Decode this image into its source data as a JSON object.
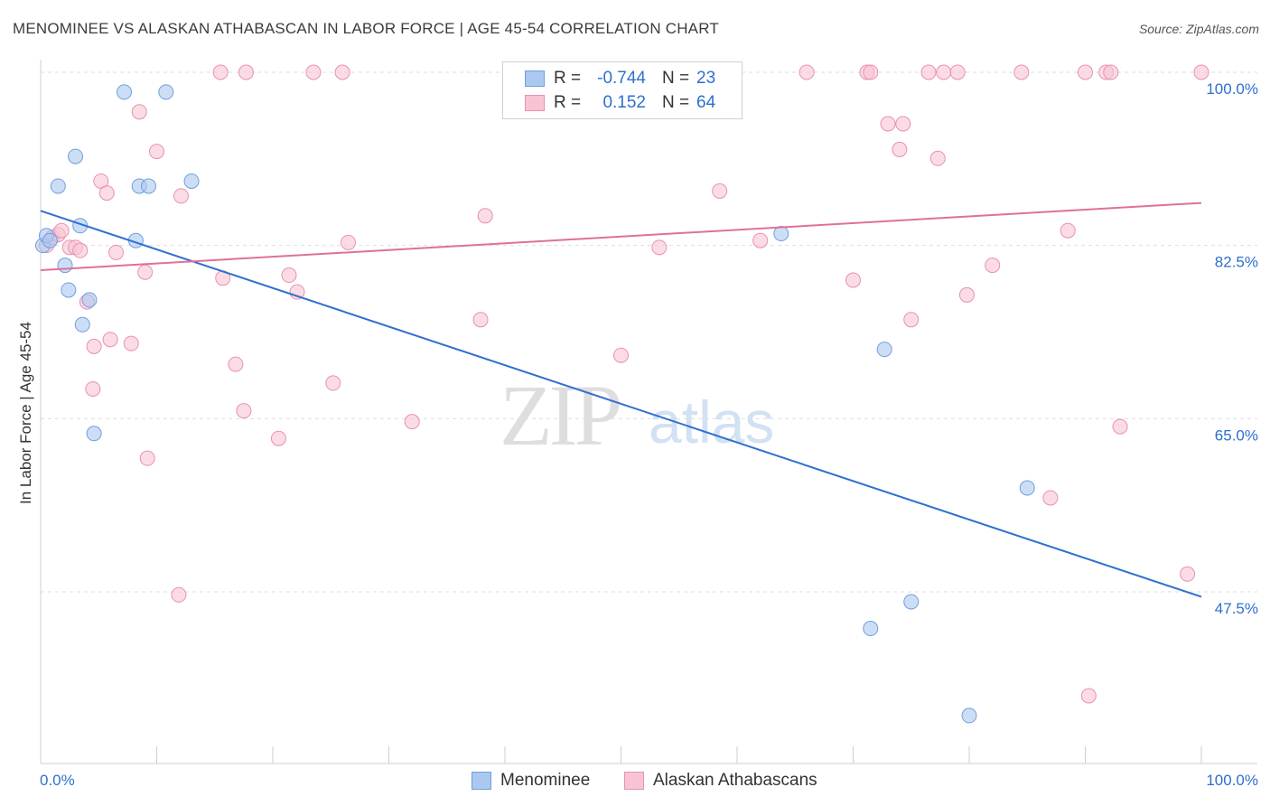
{
  "title": "MENOMINEE VS ALASKAN ATHABASCAN IN LABOR FORCE | AGE 45-54 CORRELATION CHART",
  "source": "Source: ZipAtlas.com",
  "watermark": {
    "zip": "ZIP",
    "atlas": "atlas"
  },
  "legend": {
    "rows": [
      {
        "r_label": "R =",
        "r_value": "-0.744",
        "n_label": "N =",
        "n_value": "23",
        "color": "#aac8f0",
        "border": "#6f9fde"
      },
      {
        "r_label": "R =",
        "r_value": "0.152",
        "n_label": "N =",
        "n_value": "64",
        "color": "#f8c4d4",
        "border": "#e891ae"
      }
    ]
  },
  "bottom_legend": [
    {
      "label": "Menominee",
      "color": "#aac8f0",
      "border": "#6f9fde"
    },
    {
      "label": "Alaskan Athabascans",
      "color": "#f8c4d4",
      "border": "#e891ae"
    }
  ],
  "chart_data": {
    "type": "scatter",
    "title": "MENOMINEE VS ALASKAN ATHABASCAN IN LABOR FORCE | AGE 45-54 CORRELATION CHART",
    "xlabel": "",
    "ylabel": "In Labor Force | Age 45-54",
    "xlim": [
      0,
      100
    ],
    "ylim": [
      30,
      102
    ],
    "x_tick_labels": [
      "0.0%",
      "100.0%"
    ],
    "y_ticks": [
      100.0,
      82.5,
      65.0,
      47.5
    ],
    "y_tick_labels": [
      "100.0%",
      "82.5%",
      "65.0%",
      "47.5%"
    ],
    "series": [
      {
        "name": "Menominee",
        "color": "#aac8f0",
        "edge": "#6f9fde",
        "line_color": "#2f6fd0",
        "trend": {
          "x": [
            0,
            100
          ],
          "y": [
            86.0,
            47.0
          ]
        },
        "points": [
          [
            0.2,
            82.5
          ],
          [
            0.5,
            83.5
          ],
          [
            0.8,
            83.0
          ],
          [
            1.5,
            88.5
          ],
          [
            2.1,
            80.5
          ],
          [
            2.4,
            78.0
          ],
          [
            3.0,
            91.5
          ],
          [
            3.4,
            84.5
          ],
          [
            3.6,
            74.5
          ],
          [
            4.2,
            77.0
          ],
          [
            4.6,
            63.5
          ],
          [
            7.2,
            98.0
          ],
          [
            8.2,
            83.0
          ],
          [
            8.5,
            88.5
          ],
          [
            9.3,
            88.5
          ],
          [
            10.8,
            98.0
          ],
          [
            13.0,
            89.0
          ],
          [
            63.8,
            83.7
          ],
          [
            71.5,
            43.8
          ],
          [
            72.7,
            72.0
          ],
          [
            75.0,
            46.5
          ],
          [
            80.0,
            35.0
          ],
          [
            85.0,
            58.0
          ]
        ]
      },
      {
        "name": "Alaskan Athabascans",
        "color": "#f8c4d4",
        "edge": "#e891ae",
        "line_color": "#e07099",
        "trend": {
          "x": [
            0,
            100
          ],
          "y": [
            80.0,
            86.8
          ]
        },
        "points": [
          [
            0.5,
            82.5
          ],
          [
            1.0,
            83.3
          ],
          [
            1.5,
            83.6
          ],
          [
            1.8,
            84.0
          ],
          [
            2.5,
            82.3
          ],
          [
            3.0,
            82.3
          ],
          [
            3.4,
            82.0
          ],
          [
            4.0,
            76.8
          ],
          [
            4.5,
            68.0
          ],
          [
            4.6,
            72.3
          ],
          [
            5.2,
            89.0
          ],
          [
            5.7,
            87.8
          ],
          [
            6.0,
            73.0
          ],
          [
            6.5,
            81.8
          ],
          [
            7.8,
            72.6
          ],
          [
            8.5,
            96.0
          ],
          [
            9.0,
            79.8
          ],
          [
            9.2,
            61.0
          ],
          [
            10.0,
            92.0
          ],
          [
            11.9,
            47.2
          ],
          [
            12.1,
            87.5
          ],
          [
            15.5,
            100.0
          ],
          [
            15.7,
            79.2
          ],
          [
            16.8,
            70.5
          ],
          [
            17.5,
            65.8
          ],
          [
            17.7,
            100.0
          ],
          [
            20.5,
            63.0
          ],
          [
            21.4,
            79.5
          ],
          [
            22.1,
            77.8
          ],
          [
            23.5,
            100.0
          ],
          [
            25.2,
            68.6
          ],
          [
            26.0,
            100.0
          ],
          [
            26.5,
            82.8
          ],
          [
            32.0,
            64.7
          ],
          [
            37.9,
            75.0
          ],
          [
            38.3,
            85.5
          ],
          [
            50.0,
            71.4
          ],
          [
            53.3,
            82.3
          ],
          [
            58.5,
            88.0
          ],
          [
            62.0,
            83.0
          ],
          [
            66.0,
            100.0
          ],
          [
            70.0,
            79.0
          ],
          [
            71.2,
            100.0
          ],
          [
            71.5,
            100.0
          ],
          [
            73.0,
            94.8
          ],
          [
            74.0,
            92.2
          ],
          [
            74.3,
            94.8
          ],
          [
            75.0,
            75.0
          ],
          [
            76.5,
            100.0
          ],
          [
            77.3,
            91.3
          ],
          [
            77.8,
            100.0
          ],
          [
            79.0,
            100.0
          ],
          [
            79.8,
            77.5
          ],
          [
            82.0,
            80.5
          ],
          [
            84.5,
            100.0
          ],
          [
            87.0,
            57.0
          ],
          [
            88.5,
            84.0
          ],
          [
            90.0,
            100.0
          ],
          [
            90.3,
            37.0
          ],
          [
            91.8,
            100.0
          ],
          [
            92.2,
            100.0
          ],
          [
            93.0,
            64.2
          ],
          [
            100.0,
            100.0
          ],
          [
            98.8,
            49.3
          ]
        ]
      }
    ]
  }
}
